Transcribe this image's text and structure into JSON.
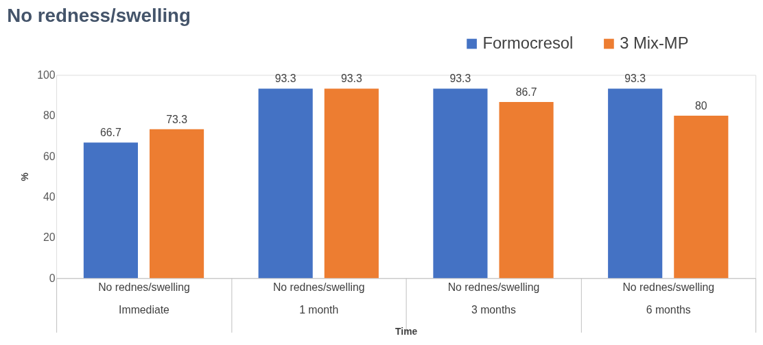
{
  "chart_data": {
    "type": "bar",
    "title": "No redness/swelling",
    "xlabel": "Time",
    "ylabel": "%",
    "categories": [
      "No rednes/swelling\nImmediate",
      "No rednes/swelling\n1 month",
      "No rednes/swelling\n3 months",
      "No rednes/swelling\n6 months"
    ],
    "series": [
      {
        "name": "Formocresol",
        "color": "#4472c4",
        "values": [
          66.7,
          93.3,
          93.3,
          93.3
        ]
      },
      {
        "name": "3 Mix-MP",
        "color": "#ed7d31",
        "values": [
          73.3,
          93.3,
          86.7,
          80
        ]
      }
    ],
    "ylim": [
      0,
      100
    ],
    "yticks": [
      0,
      20,
      40,
      60,
      80,
      100
    ],
    "grid": false,
    "legend": "top right",
    "data_labels": true
  }
}
